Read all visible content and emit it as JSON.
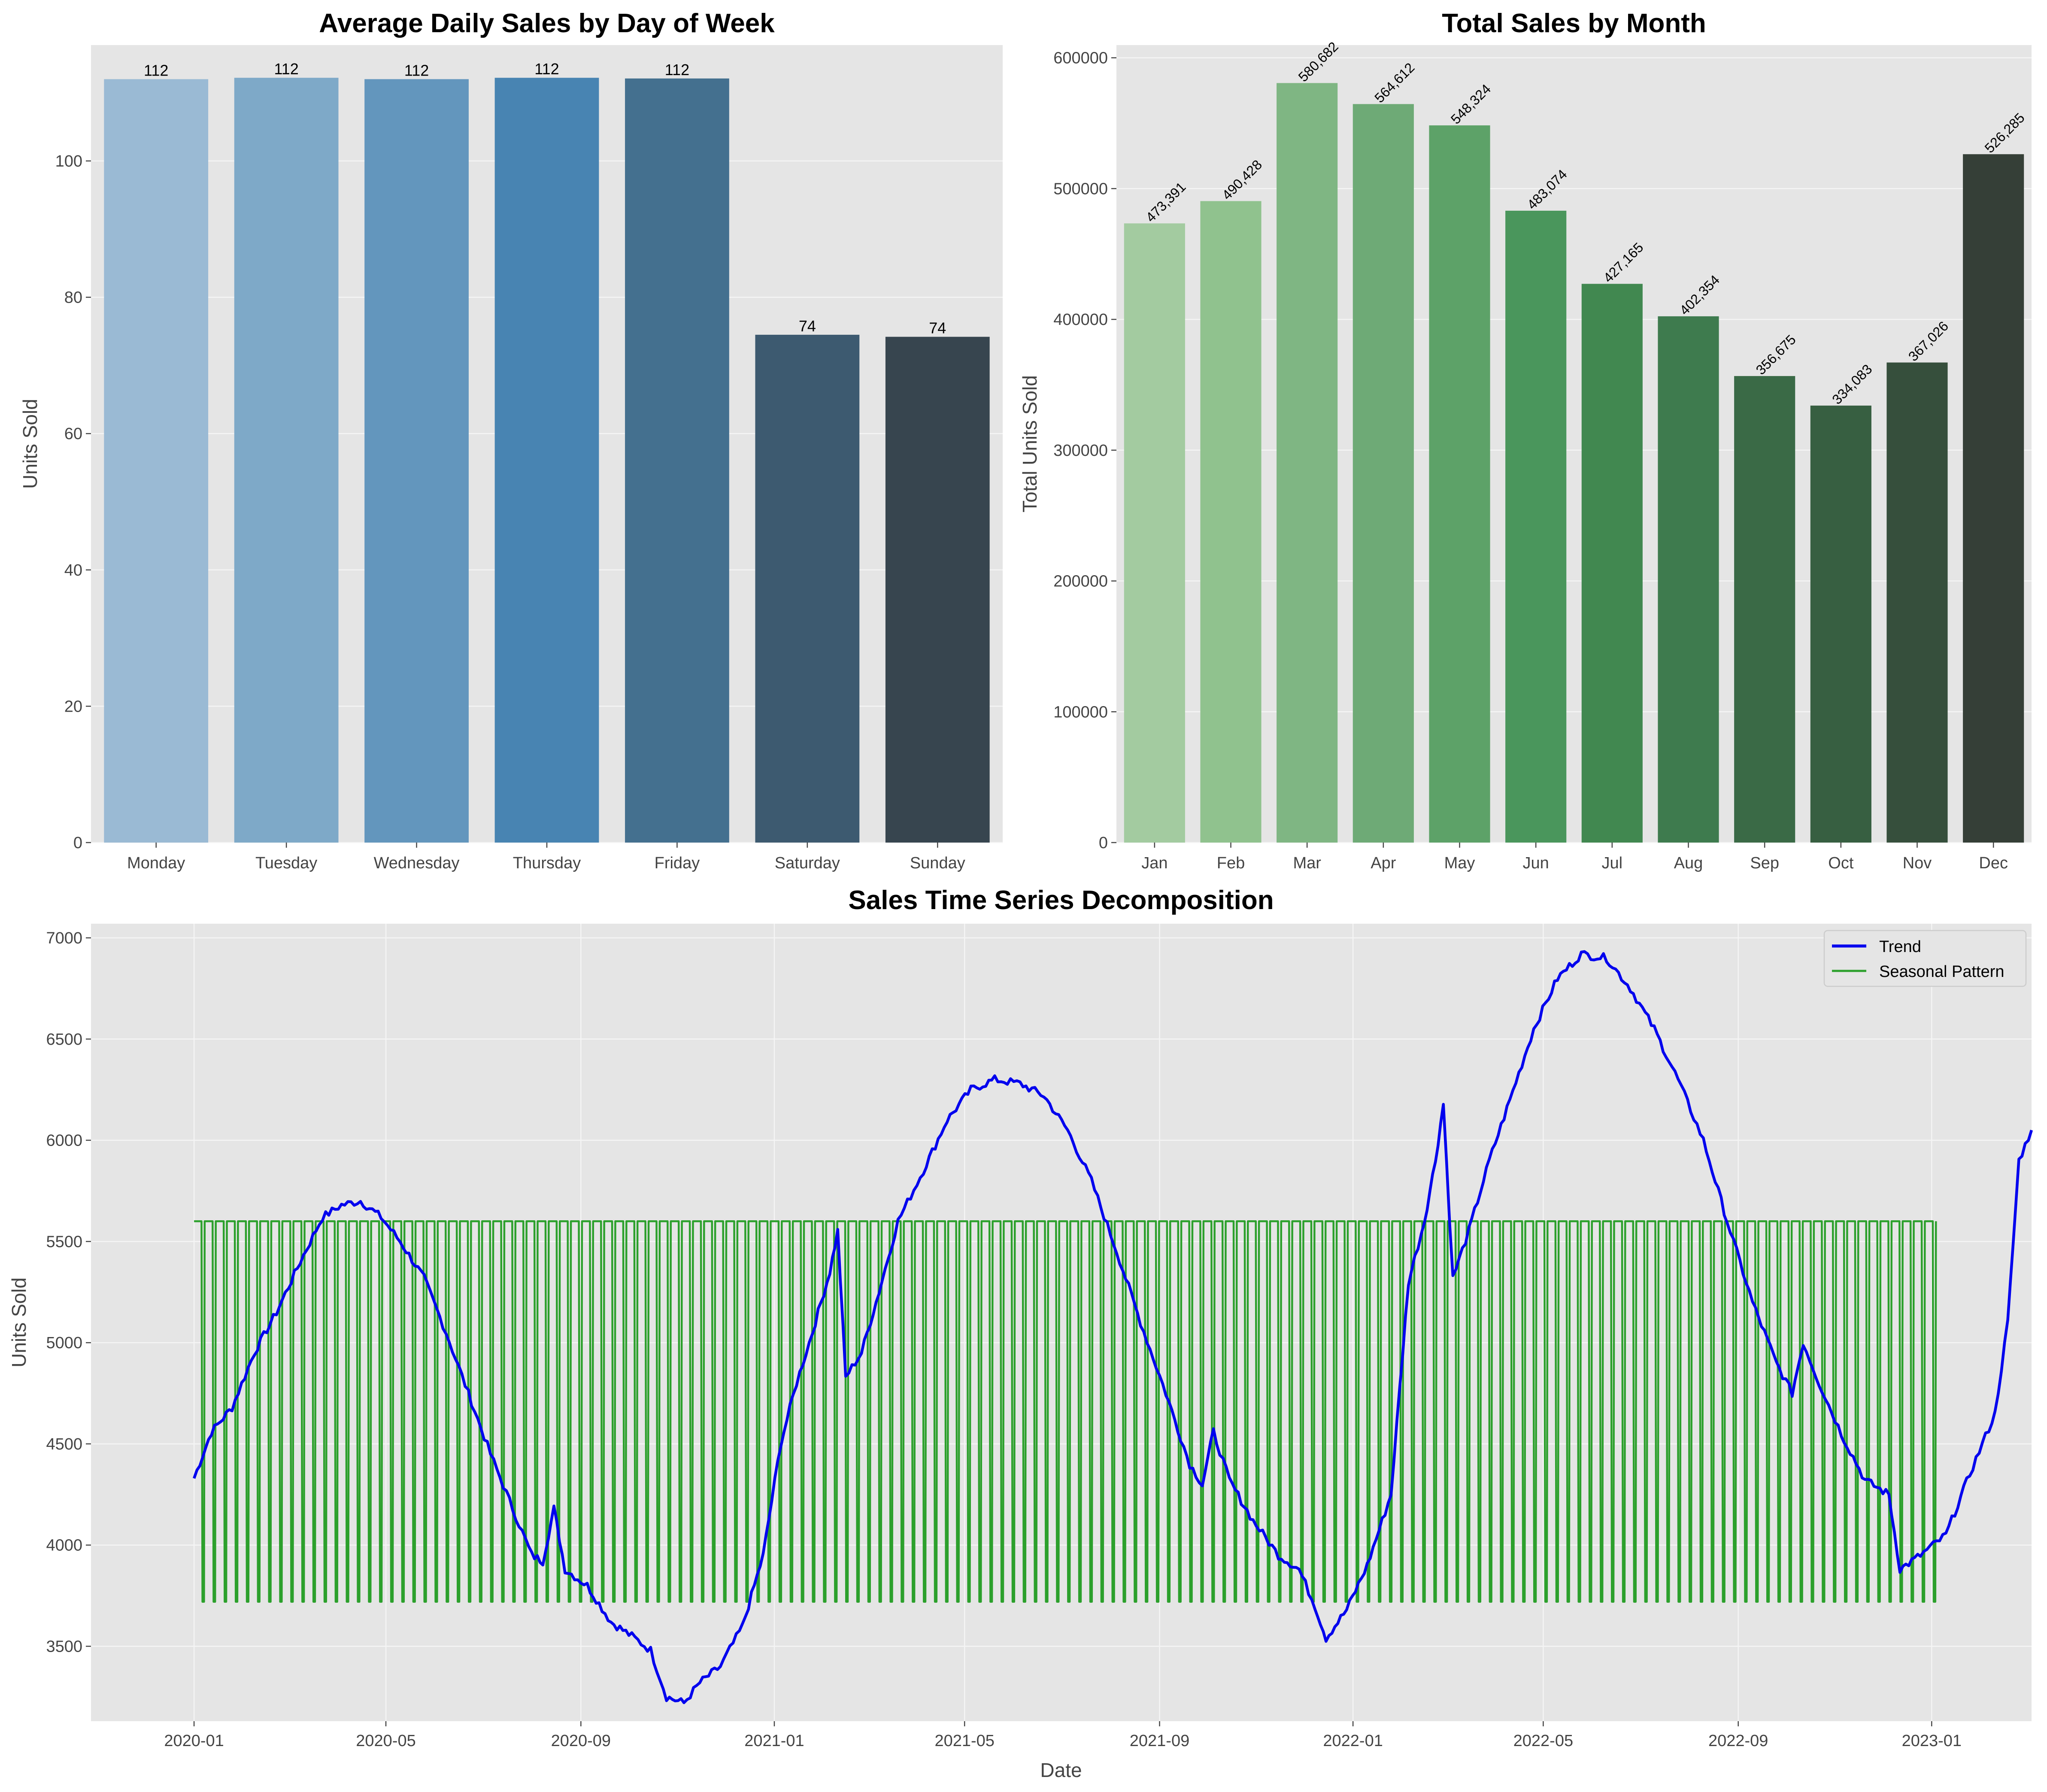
{
  "colors": {
    "panel_bg": "#e5e5e5",
    "grid": "#f5f5f5",
    "axis_text": "#444444",
    "title_text": "#000000",
    "trend": "#0000ee",
    "seasonal": "#2ca02c"
  },
  "chart_data": [
    {
      "type": "bar",
      "title": "Average Daily Sales by Day of Week",
      "xlabel": "",
      "ylabel": "Units Sold",
      "categories": [
        "Monday",
        "Tuesday",
        "Wednesday",
        "Thursday",
        "Friday",
        "Saturday",
        "Sunday"
      ],
      "values": [
        112.0,
        112.2,
        112.0,
        112.2,
        112.1,
        74.5,
        74.2
      ],
      "value_labels": [
        "112",
        "112",
        "112",
        "112",
        "112",
        "74",
        "74"
      ],
      "bar_colors": [
        "#9abad4",
        "#7ea9c8",
        "#6396bd",
        "#4884b2",
        "#44708f",
        "#3d5a70",
        "#37454f"
      ],
      "ylim": [
        0,
        117
      ],
      "yticks": [
        0,
        20,
        40,
        60,
        80,
        100
      ],
      "grid": true
    },
    {
      "type": "bar",
      "title": "Total Sales by Month",
      "xlabel": "",
      "ylabel": "Total Units Sold",
      "categories": [
        "Jan",
        "Feb",
        "Mar",
        "Apr",
        "May",
        "Jun",
        "Jul",
        "Aug",
        "Sep",
        "Oct",
        "Nov",
        "Dec"
      ],
      "values": [
        473391,
        490428,
        580682,
        564612,
        548324,
        483074,
        427165,
        402354,
        356675,
        334083,
        367026,
        526285
      ],
      "value_labels": [
        "473,391",
        "490,428",
        "580,682",
        "564,612",
        "548,324",
        "483,074",
        "427,165",
        "402,354",
        "356,675",
        "334,083",
        "367,026",
        "526,285"
      ],
      "bar_colors": [
        "#a3cba0",
        "#90c28e",
        "#7fb683",
        "#6eaa76",
        "#5da268",
        "#4a965c",
        "#418850",
        "#3e7b4e",
        "#3a6a46",
        "#375f41",
        "#364f3c",
        "#353f37"
      ],
      "ylim": [
        0,
        609716
      ],
      "yticks": [
        0,
        100000,
        200000,
        300000,
        400000,
        500000,
        600000
      ],
      "grid": true
    },
    {
      "type": "line",
      "title": "Sales Time Series Decomposition",
      "xlabel": "Date",
      "ylabel": "Units Sold",
      "x_start": "2020-01-01",
      "x_end": "2022-12-31",
      "x_ticks": [
        "2020-01",
        "2020-05",
        "2020-09",
        "2021-01",
        "2021-05",
        "2021-09",
        "2022-01",
        "2022-05",
        "2022-09",
        "2023-01"
      ],
      "xlim": [
        "2019-10-28",
        "2023-03-05"
      ],
      "ylim": [
        3130,
        7070
      ],
      "yticks": [
        3500,
        4000,
        4500,
        5000,
        5500,
        6000,
        6500,
        7000
      ],
      "grid": true,
      "legend_position": "top-right",
      "series": [
        {
          "name": "Trend",
          "color": "#0000ee",
          "points": [
            [
              "2020-01-01",
              4330
            ],
            [
              "2020-01-12",
              4560
            ],
            [
              "2020-01-25",
              4680
            ],
            [
              "2020-02-08",
              4950
            ],
            [
              "2020-02-22",
              5150
            ],
            [
              "2020-03-08",
              5400
            ],
            [
              "2020-03-22",
              5620
            ],
            [
              "2020-04-03",
              5680
            ],
            [
              "2020-04-15",
              5700
            ],
            [
              "2020-04-28",
              5620
            ],
            [
              "2020-05-10",
              5500
            ],
            [
              "2020-05-25",
              5320
            ],
            [
              "2020-06-08",
              5050
            ],
            [
              "2020-06-22",
              4750
            ],
            [
              "2020-07-06",
              4450
            ],
            [
              "2020-07-20",
              4180
            ],
            [
              "2020-08-01",
              3950
            ],
            [
              "2020-08-08",
              3920
            ],
            [
              "2020-08-15",
              4180
            ],
            [
              "2020-08-22",
              3880
            ],
            [
              "2020-09-05",
              3800
            ],
            [
              "2020-09-20",
              3620
            ],
            [
              "2020-10-05",
              3540
            ],
            [
              "2020-10-15",
              3480
            ],
            [
              "2020-10-25",
              3250
            ],
            [
              "2020-11-05",
              3220
            ],
            [
              "2020-11-15",
              3320
            ],
            [
              "2020-11-28",
              3400
            ],
            [
              "2020-12-12",
              3600
            ],
            [
              "2020-12-25",
              3950
            ],
            [
              "2021-01-05",
              4500
            ],
            [
              "2021-01-15",
              4800
            ],
            [
              "2021-01-25",
              5050
            ],
            [
              "2021-02-05",
              5350
            ],
            [
              "2021-02-10",
              5550
            ],
            [
              "2021-02-15",
              4830
            ],
            [
              "2021-02-25",
              4950
            ],
            [
              "2021-03-08",
              5250
            ],
            [
              "2021-03-20",
              5600
            ],
            [
              "2021-04-05",
              5850
            ],
            [
              "2021-04-20",
              6100
            ],
            [
              "2021-05-05",
              6250
            ],
            [
              "2021-05-20",
              6300
            ],
            [
              "2021-06-05",
              6280
            ],
            [
              "2021-06-20",
              6220
            ],
            [
              "2021-07-05",
              6050
            ],
            [
              "2021-07-20",
              5800
            ],
            [
              "2021-08-05",
              5450
            ],
            [
              "2021-08-20",
              5100
            ],
            [
              "2021-09-05",
              4750
            ],
            [
              "2021-09-20",
              4400
            ],
            [
              "2021-09-28",
              4300
            ],
            [
              "2021-10-05",
              4560
            ],
            [
              "2021-10-15",
              4320
            ],
            [
              "2021-10-30",
              4120
            ],
            [
              "2021-11-15",
              3950
            ],
            [
              "2021-11-28",
              3880
            ],
            [
              "2021-12-08",
              3700
            ],
            [
              "2021-12-15",
              3540
            ],
            [
              "2021-12-28",
              3680
            ],
            [
              "2022-01-10",
              3900
            ],
            [
              "2022-01-25",
              4250
            ],
            [
              "2022-02-05",
              5300
            ],
            [
              "2022-02-15",
              5600
            ],
            [
              "2022-02-22",
              5900
            ],
            [
              "2022-02-27",
              6180
            ],
            [
              "2022-03-05",
              5320
            ],
            [
              "2022-03-15",
              5550
            ],
            [
              "2022-03-28",
              5900
            ],
            [
              "2022-04-10",
              6200
            ],
            [
              "2022-04-25",
              6550
            ],
            [
              "2022-05-10",
              6800
            ],
            [
              "2022-05-25",
              6920
            ],
            [
              "2022-06-10",
              6900
            ],
            [
              "2022-06-25",
              6750
            ],
            [
              "2022-07-10",
              6550
            ],
            [
              "2022-07-25",
              6300
            ],
            [
              "2022-08-10",
              6000
            ],
            [
              "2022-08-25",
              5600
            ],
            [
              "2022-09-10",
              5200
            ],
            [
              "2022-09-25",
              4900
            ],
            [
              "2022-10-05",
              4750
            ],
            [
              "2022-10-12",
              5000
            ],
            [
              "2022-10-22",
              4800
            ],
            [
              "2022-11-05",
              4550
            ],
            [
              "2022-11-20",
              4320
            ],
            [
              "2022-12-05",
              4250
            ],
            [
              "2022-12-12",
              3880
            ],
            [
              "2022-12-25",
              3950
            ],
            [
              "2023-01-10",
              4050
            ],
            [
              "2023-01-25",
              4350
            ],
            [
              "2023-02-10",
              4650
            ],
            [
              "2023-02-18",
              5100
            ],
            [
              "2023-02-25",
              5900
            ],
            [
              "2023-03-05",
              6050
            ]
          ]
        },
        {
          "name": "Seasonal Pattern",
          "color": "#2ca02c",
          "high": 5600,
          "low": 3720,
          "period_days": 7
        }
      ]
    }
  ]
}
